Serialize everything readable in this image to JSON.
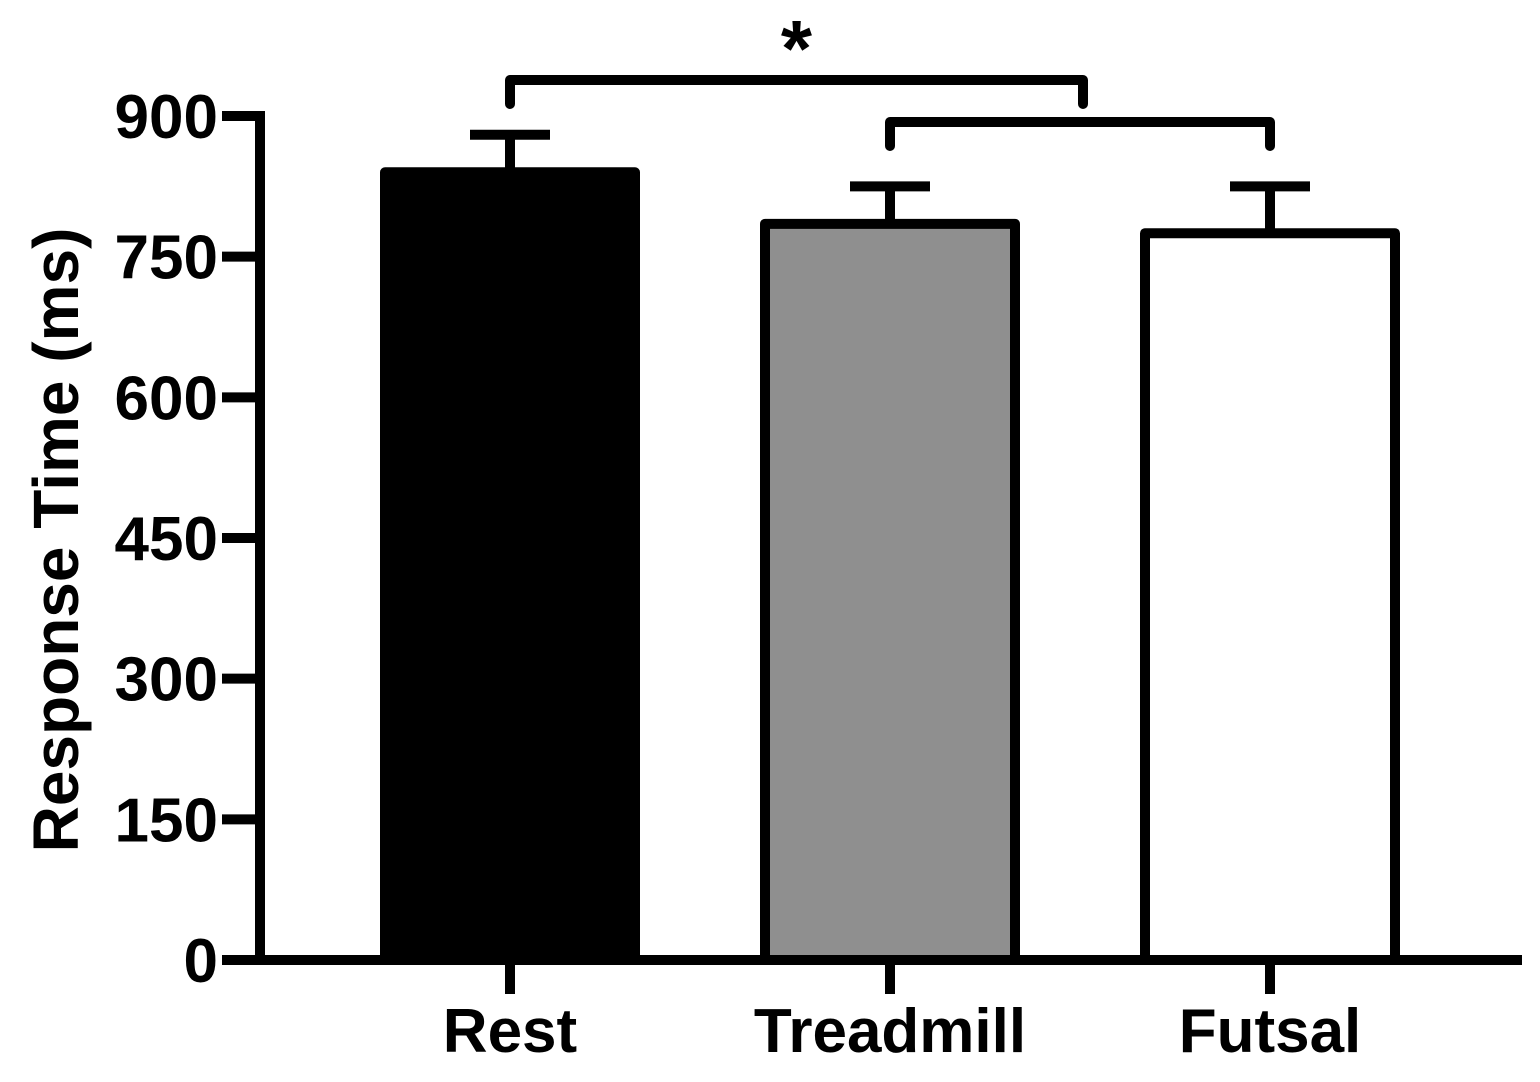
{
  "chart_data": {
    "type": "bar",
    "categories": [
      "Rest",
      "Treadmill",
      "Futsal"
    ],
    "values": [
      840,
      785,
      775
    ],
    "error_bars": [
      40,
      40,
      50
    ],
    "colors": [
      "#000000",
      "#8f8f8f",
      "#ffffff"
    ],
    "ylabel": "Response Time (ms)",
    "xlabel": "",
    "title": "",
    "ylim": [
      0,
      900
    ],
    "yticks": [
      "0",
      "150",
      "300",
      "450",
      "600",
      "750",
      "900"
    ],
    "ytick_values": [
      0,
      150,
      300,
      450,
      600,
      750,
      900
    ],
    "grid": false,
    "significance": {
      "symbol": "*",
      "brackets": [
        {
          "from": "Rest",
          "to_between": [
            "Treadmill",
            "Futsal"
          ]
        },
        {
          "from": "Treadmill",
          "to": "Futsal"
        }
      ]
    }
  }
}
